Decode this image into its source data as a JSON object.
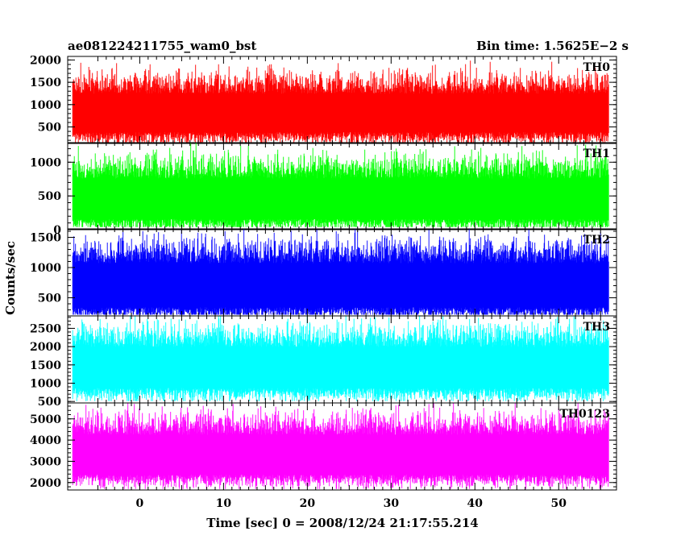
{
  "header": {
    "title": "ae081224211755_wam0_bst",
    "bin_time": "Bin time: 1.5625E−2 s"
  },
  "chart_data": {
    "type": "line",
    "title": "ae081224211755_wam0_bst",
    "xlabel": "Time [sec] 0 = 2008/12/24 21:17:55.214",
    "ylabel": "Counts/sec",
    "xlim": [
      -8.6,
      56.9
    ],
    "x_ticks": [
      0,
      10,
      20,
      30,
      40,
      50
    ],
    "data_range": [
      -8,
      56
    ],
    "panels": [
      {
        "name": "TH0",
        "color": "#ff0000",
        "ylim": [
          130,
          2080
        ],
        "y_ticks": [
          500,
          1000,
          1500,
          2000
        ],
        "baseline": 830,
        "spread": 330,
        "low_floor": 150,
        "high_cap": 2080
      },
      {
        "name": "TH1",
        "color": "#00ff00",
        "ylim": [
          0,
          1290
        ],
        "y_ticks": [
          0,
          500,
          1000
        ],
        "baseline": 470,
        "spread": 230,
        "low_floor": 40,
        "high_cap": 1290
      },
      {
        "name": "TH2",
        "color": "#0000ff",
        "ylim": [
          200,
          1640
        ],
        "y_ticks": [
          500,
          1000,
          1500
        ],
        "baseline": 720,
        "spread": 280,
        "low_floor": 220,
        "high_cap": 1640
      },
      {
        "name": "TH3",
        "color": "#00ffff",
        "ylim": [
          460,
          2840
        ],
        "y_ticks": [
          500,
          1000,
          1500,
          2000,
          2500
        ],
        "baseline": 1450,
        "spread": 430,
        "low_floor": 510,
        "high_cap": 2840
      },
      {
        "name": "TH0123",
        "color": "#ff00ff",
        "ylim": [
          1650,
          5750
        ],
        "y_ticks": [
          2000,
          3000,
          4000,
          5000
        ],
        "baseline": 3350,
        "spread": 720,
        "low_floor": 1700,
        "high_cap": 5750
      }
    ]
  }
}
